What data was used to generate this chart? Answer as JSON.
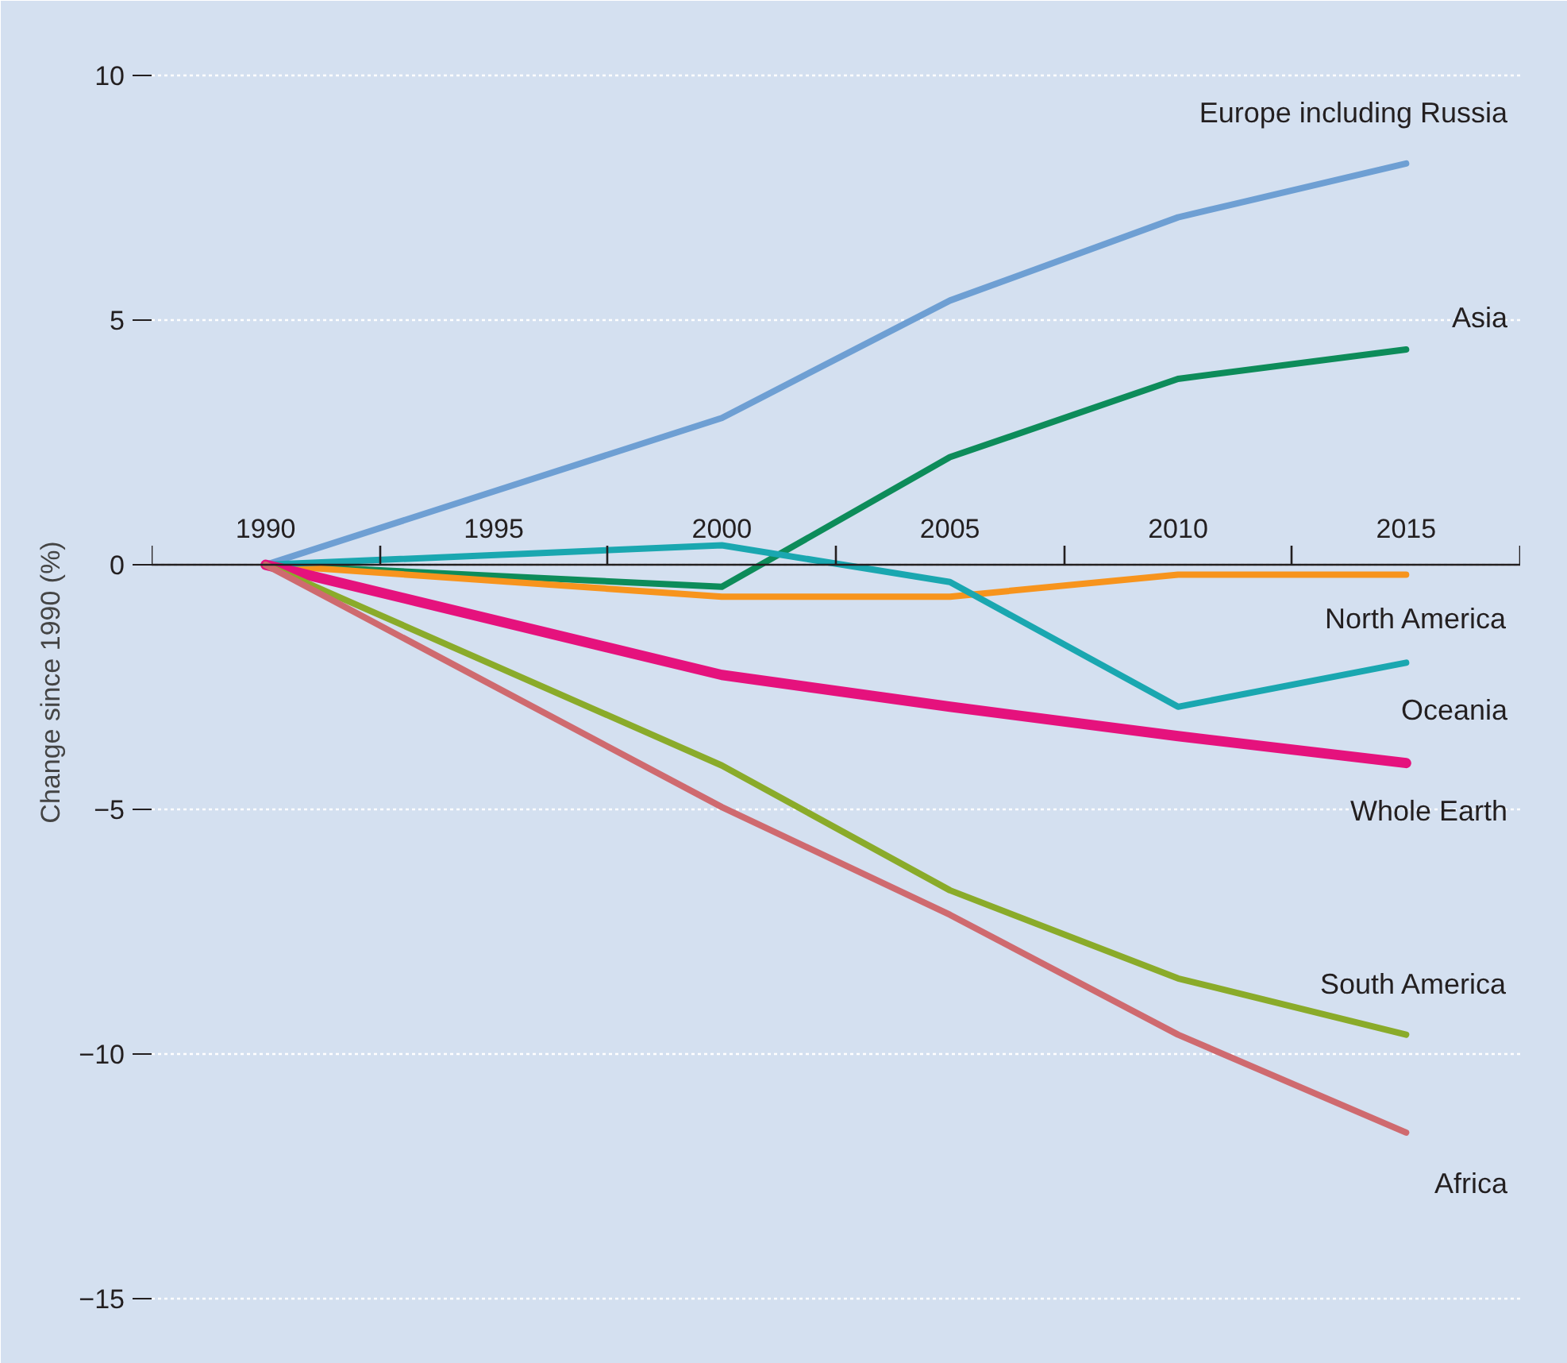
{
  "chart_data": {
    "type": "line",
    "ylabel": "Change since 1990 (%)",
    "x": [
      1990,
      2000,
      2005,
      2010,
      2015
    ],
    "xlim": [
      1987.5,
      2017.5
    ],
    "ylim": [
      -16,
      11.2
    ],
    "xticks": [
      {
        "value": 1987.5,
        "label": null
      },
      1990,
      {
        "value": 1992.5,
        "label": null
      },
      1995,
      {
        "value": 1997.5,
        "label": null
      },
      2000,
      {
        "value": 2002.5,
        "label": null
      },
      2005,
      {
        "value": 2007.5,
        "label": null
      },
      2010,
      {
        "value": 2012.5,
        "label": null
      },
      2015,
      {
        "value": 2017.5,
        "label": null
      }
    ],
    "yticks": [
      -15,
      -10,
      -5,
      0,
      5,
      10
    ],
    "grid": "y",
    "marker": "none",
    "line_style": "solid",
    "series": [
      {
        "name": "Europe including Russia",
        "color": "#6e9fd3",
        "values": [
          0,
          3.0,
          5.4,
          7.1,
          8.2
        ]
      },
      {
        "name": "Asia",
        "color": "#0d8c5a",
        "values": [
          0,
          -0.45,
          2.2,
          3.8,
          4.4
        ]
      },
      {
        "name": "North America",
        "color": "#f7941d",
        "values": [
          0,
          -0.65,
          -0.65,
          -0.2,
          -0.2
        ]
      },
      {
        "name": "Oceania",
        "color": "#1aa7b0",
        "values": [
          0,
          0.4,
          -0.35,
          -2.9,
          -2.0
        ]
      },
      {
        "name": "Whole Earth",
        "color": "#e5127d",
        "values": [
          0,
          -2.25,
          -2.9,
          -3.5,
          -4.05
        ]
      },
      {
        "name": "South America",
        "color": "#8aab2a",
        "values": [
          0,
          -4.1,
          -6.65,
          -8.45,
          -9.6
        ]
      },
      {
        "name": "Africa",
        "color": "#cf6a6f",
        "values": [
          0,
          -4.95,
          -7.15,
          -9.6,
          -11.6
        ]
      }
    ]
  }
}
